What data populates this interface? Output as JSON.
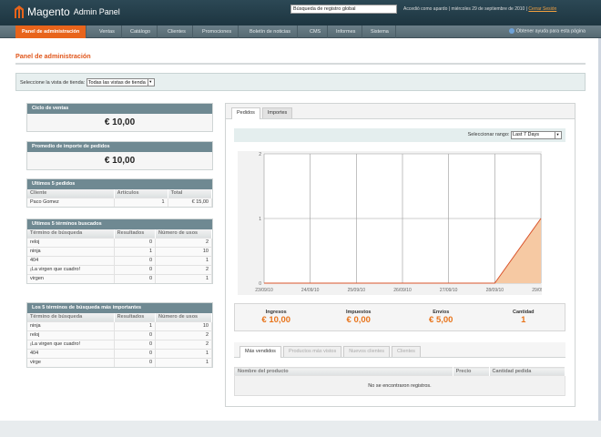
{
  "header": {
    "logo_text": "Magento",
    "logo_sub": "Admin Panel",
    "search_value": "Búsqueda de registro global",
    "user_info": "Accedió como apardo",
    "date": "miércoles 29 de septiembre de 2010",
    "logout": "Cerrar Sesión"
  },
  "nav": {
    "items": [
      "Panel de administración",
      "Ventas",
      "Catálogo",
      "Clientes",
      "Promociones",
      "Boletín de noticias",
      "CMS",
      "Informes",
      "Sistema"
    ],
    "active": 0,
    "help": "Obtener ayuda para esta página"
  },
  "page": {
    "title": "Panel de administración",
    "store_label": "Seleccione la vista de tienda:",
    "store_value": "Todas las vistas de tienda"
  },
  "left": {
    "sales": {
      "title": "Ciclo de ventas",
      "value": "€ 10,00"
    },
    "avg": {
      "title": "Promedio de importe de pedidos",
      "value": "€ 10,00"
    },
    "orders": {
      "title": "Ultimos 5 pedidos",
      "headers": [
        "Cliente",
        "Artículos",
        "Total"
      ],
      "rows": [
        [
          "Paco Gomez",
          "1",
          "€ 15,00"
        ]
      ]
    },
    "last_search": {
      "title": "Ultimos 5 términos buscados",
      "headers": [
        "Término de búsqueda",
        "Resultados",
        "Número de usos"
      ],
      "rows": [
        [
          "reloj",
          "0",
          "2"
        ],
        [
          "ninja",
          "1",
          "10"
        ],
        [
          "404",
          "0",
          "1"
        ],
        [
          "¡La virgen que cuadro!",
          "0",
          "2"
        ],
        [
          "virgen",
          "0",
          "1"
        ]
      ]
    },
    "top_search": {
      "title": "Los 5 términos de búsqueda más importantes",
      "headers": [
        "Término de búsqueda",
        "Resultados",
        "Número de usos"
      ],
      "rows": [
        [
          "ninja",
          "1",
          "10"
        ],
        [
          "reloj",
          "0",
          "2"
        ],
        [
          "¡La virgen que cuadro!",
          "0",
          "2"
        ],
        [
          "404",
          "0",
          "1"
        ],
        [
          "virge",
          "0",
          "1"
        ]
      ]
    }
  },
  "right": {
    "tabs": [
      "Pedidos",
      "Importes"
    ],
    "range_label": "Seleccionar rango:",
    "range_value": "Last 7 Days",
    "totals": [
      {
        "label": "Ingresos",
        "value": "€ 10,00"
      },
      {
        "label": "Impuestos",
        "value": "€ 0,00"
      },
      {
        "label": "Envíos",
        "value": "€ 5,00"
      },
      {
        "label": "Cantidad",
        "value": "1"
      }
    ],
    "bottom_tabs": [
      "Más vendidos",
      "Productos más vistos",
      "Nuevos clientes",
      "Clientes"
    ],
    "bottom_headers": [
      "Nombre del producto",
      "Precio",
      "Cantidad pedida"
    ],
    "empty": "No se encontraron registros."
  },
  "chart_data": {
    "type": "area",
    "categories": [
      "23/09/10",
      "24/09/10",
      "25/09/10",
      "26/09/10",
      "27/09/10",
      "28/09/10",
      "29/09/10"
    ],
    "values": [
      0,
      0,
      0,
      0,
      0,
      0,
      1
    ],
    "yticks": [
      "0",
      "1",
      "2"
    ],
    "ylim": [
      0,
      2
    ],
    "grid": true,
    "line_color": "#d9542b",
    "fill_color": "#f6c9a3"
  }
}
